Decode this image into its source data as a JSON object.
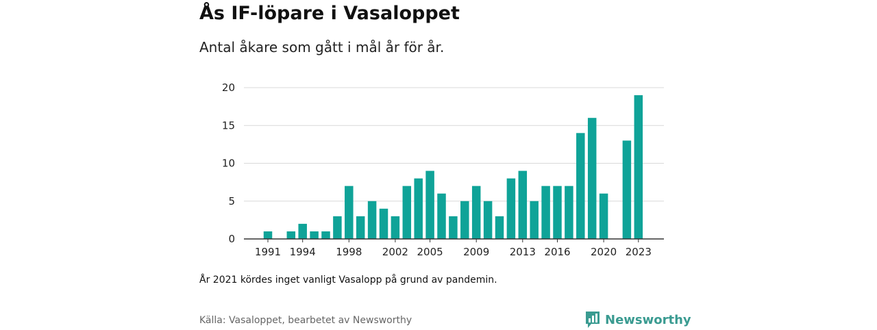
{
  "title": "Ås IF-löpare i Vasaloppet",
  "subtitle": "Antal åkare som gått i mål år för år.",
  "note": "År 2021 kördes inget vanligt Vasalopp på grund av pandemin.",
  "source": "Källa: Vasaloppet, bearbetet av Newsworthy",
  "brand": {
    "name": "Newsworthy",
    "icon": "newsworthy-logo-icon",
    "color": "#3a9b91"
  },
  "colors": {
    "bar": "#0fa398",
    "grid": "#d9d9d9",
    "axis": "#333333"
  },
  "chart_data": {
    "type": "bar",
    "title": "Ås IF-löpare i Vasaloppet",
    "subtitle": "Antal åkare som gått i mål år för år.",
    "xlabel": "",
    "ylabel": "",
    "grid": true,
    "ylim": [
      0,
      20
    ],
    "yticks": [
      0,
      5,
      10,
      15,
      20
    ],
    "xticks": [
      1991,
      1994,
      1998,
      2002,
      2005,
      2009,
      2013,
      2016,
      2020,
      2023
    ],
    "categories": [
      1991,
      1992,
      1993,
      1994,
      1995,
      1996,
      1997,
      1998,
      1999,
      2000,
      2001,
      2002,
      2003,
      2004,
      2005,
      2006,
      2007,
      2008,
      2009,
      2010,
      2011,
      2012,
      2013,
      2014,
      2015,
      2016,
      2017,
      2018,
      2019,
      2020,
      2021,
      2022,
      2023
    ],
    "values": [
      1,
      0,
      1,
      2,
      1,
      1,
      3,
      7,
      3,
      5,
      4,
      3,
      7,
      8,
      9,
      6,
      3,
      5,
      7,
      5,
      3,
      8,
      9,
      5,
      7,
      7,
      7,
      14,
      16,
      6,
      null,
      13,
      19
    ]
  }
}
